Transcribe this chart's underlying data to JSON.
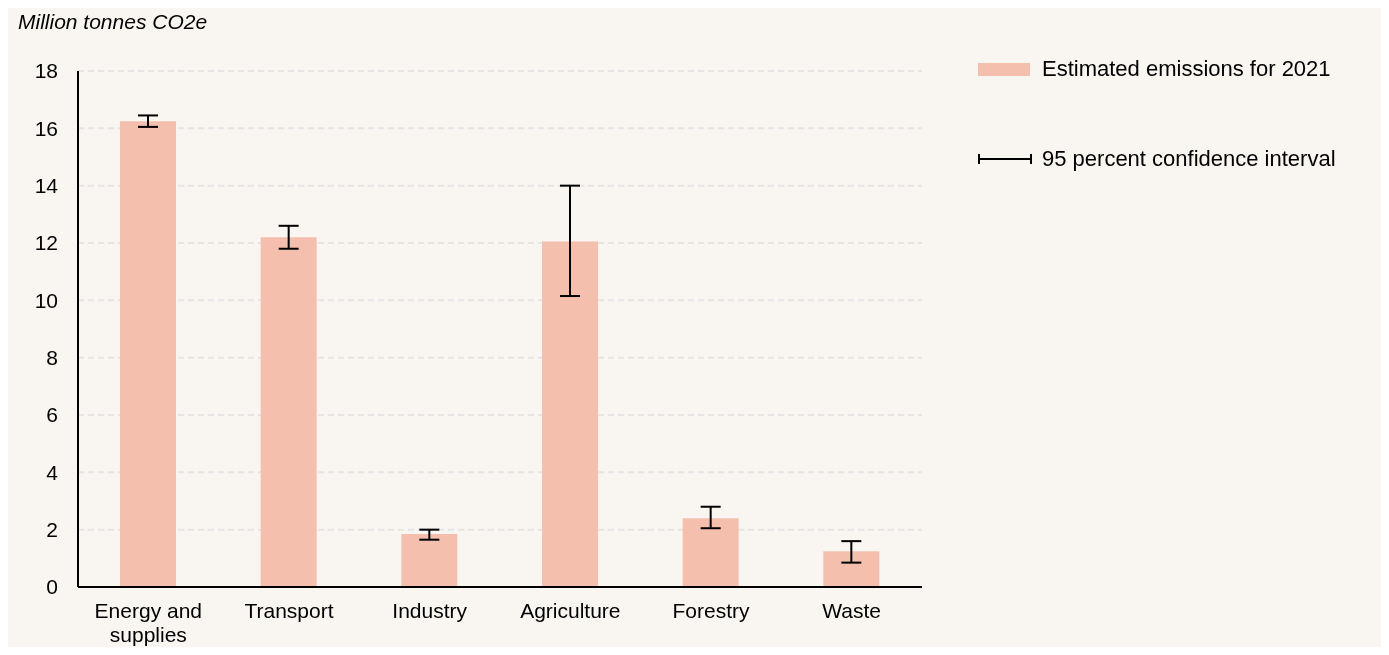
{
  "chart_data": {
    "type": "bar",
    "ylabel": "Million tonnes CO2e",
    "categories": [
      "Energy and supplies",
      "Transport",
      "Industry",
      "Agriculture",
      "Forestry",
      "Waste"
    ],
    "series": [
      {
        "name": "Estimated emissions for 2021",
        "color": "#f5bfae",
        "values": [
          16.25,
          12.2,
          1.85,
          12.05,
          2.4,
          1.25
        ],
        "errors": [
          [
            16.05,
            16.45
          ],
          [
            11.8,
            12.6
          ],
          [
            1.65,
            2.0
          ],
          [
            10.15,
            14.0
          ],
          [
            2.05,
            2.8
          ],
          [
            0.85,
            1.6
          ]
        ]
      }
    ],
    "annotations": [
      "95 percent confidence interval"
    ],
    "ylim": [
      0,
      18
    ],
    "yticks": [
      0,
      2,
      4,
      6,
      8,
      10,
      12,
      14,
      16,
      18
    ],
    "grid": "y",
    "legend": "top right"
  }
}
